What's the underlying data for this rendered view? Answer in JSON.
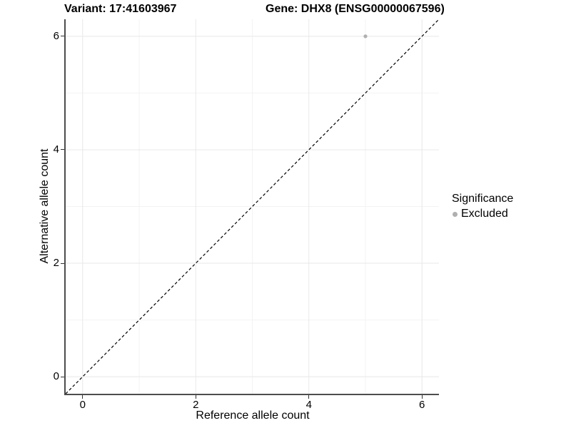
{
  "titles": {
    "variant": "Variant: 17:41603967",
    "gene": "Gene: DHX8 (ENSG00000067596)"
  },
  "axes": {
    "x": {
      "label": "Reference allele count"
    },
    "y": {
      "label": "Alternative allele count"
    }
  },
  "legend": {
    "title": "Significance",
    "items": [
      {
        "label": "Excluded",
        "color": "#b0b0b0"
      }
    ]
  },
  "colors": {
    "grid_major": "#e8e8e8",
    "grid_minor": "#f3f3f3",
    "axis_line": "#4d4d4d",
    "tick_mark": "#333333",
    "text": "#000000",
    "point_gray": "#b0b0b0",
    "reference_line": "#000000"
  },
  "chart_data": {
    "type": "scatter",
    "title": "Variant: 17:41603967 / Gene: DHX8 (ENSG00000067596)",
    "xlabel": "Reference allele count",
    "ylabel": "Alternative allele count",
    "xlim": [
      -0.3,
      6.3
    ],
    "ylim": [
      -0.3,
      6.3
    ],
    "x_ticks": [
      0,
      2,
      4,
      6
    ],
    "y_ticks": [
      0,
      2,
      4,
      6
    ],
    "x_minor_gridlines": [
      1,
      3,
      5
    ],
    "y_minor_gridlines": [
      1,
      3,
      5
    ],
    "grid": true,
    "legend_position": "right",
    "series": [
      {
        "name": "Excluded",
        "color": "#b0b0b0",
        "points": [
          {
            "x": 5,
            "y": 6
          }
        ]
      }
    ],
    "reference_line": {
      "description": "identity line y = x",
      "style": "dashed",
      "color": "#000000",
      "from": [
        -0.3,
        -0.3
      ],
      "to": [
        6.3,
        6.3
      ]
    }
  }
}
